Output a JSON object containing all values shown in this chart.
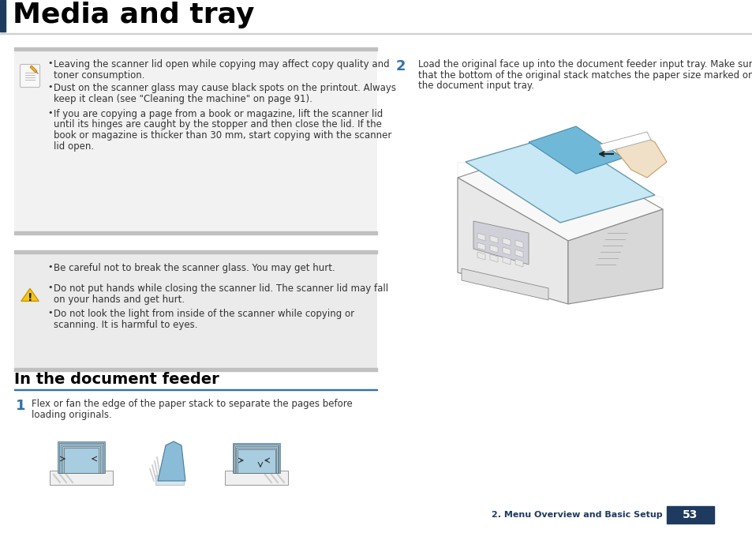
{
  "title": "Media and tray",
  "title_color": "#000000",
  "title_bar_color": "#1e3a5f",
  "page_bg": "#ffffff",
  "section_bg_note": "#f2f2f2",
  "section_bg_caution": "#ebebeb",
  "footer_bar_color": "#1e3a5f",
  "footer_text": "2. Menu Overview and Basic Setup",
  "footer_page": "53",
  "footer_text_color": "#1e3a5f",
  "footer_page_text_color": "#ffffff",
  "note_bullet1_line1": "Leaving the scanner lid open while copying may affect copy quality and",
  "note_bullet1_line2": "toner consumption.",
  "note_bullet2_line1": "Dust on the scanner glass may cause black spots on the printout. Always",
  "note_bullet2_line2": "keep it clean (see \"Cleaning the machine\" on page 91).",
  "note_bullet3_line1": "If you are copying a page from a book or magazine, lift the scanner lid",
  "note_bullet3_line2": "until its hinges are caught by the stopper and then close the lid. If the",
  "note_bullet3_line3": "book or magazine is thicker than 30 mm, start copying with the scanner",
  "note_bullet3_line4": "lid open.",
  "caution_bullet1": "Be careful not to break the scanner glass. You may get hurt.",
  "caution_bullet2_line1": "Do not put hands while closing the scanner lid. The scanner lid may fall",
  "caution_bullet2_line2": "on your hands and get hurt.",
  "caution_bullet3_line1": "Do not look the light from inside of the scanner while copying or",
  "caution_bullet3_line2": "scanning. It is harmful to eyes.",
  "section_heading": "In the document feeder",
  "step1_number": "1",
  "step1_text_line1": "Flex or fan the edge of the paper stack to separate the pages before",
  "step1_text_line2": "loading originals.",
  "step2_number": "2",
  "step2_text_line1": "Load the original face up into the document feeder input tray. Make sure",
  "step2_text_line2": "that the bottom of the original stack matches the paper size marked on",
  "step2_text_line3": "the document input tray.",
  "text_color": "#333333",
  "step_number_color": "#3070b0",
  "heading_color": "#000000",
  "divider_color_light": "#c8c8c8",
  "divider_color_blue": "#3070b0"
}
